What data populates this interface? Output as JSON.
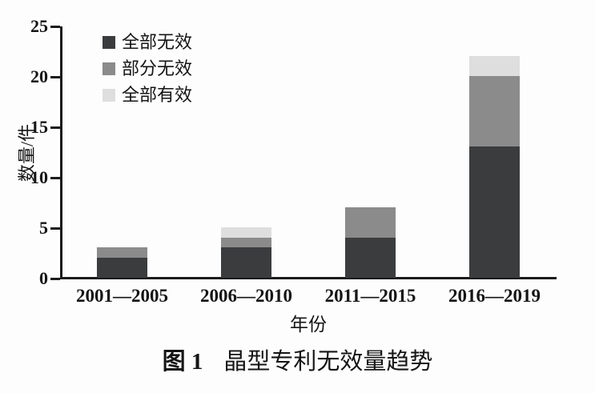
{
  "figure": {
    "caption_label": "图 1",
    "caption_title": "晶型专利无效量趋势"
  },
  "chart_data": {
    "type": "bar",
    "stacked": true,
    "title": "",
    "xlabel": "年份",
    "ylabel": "数量/件",
    "categories": [
      "2001—2005",
      "2006—2010",
      "2011—2015",
      "2016—2019"
    ],
    "series": [
      {
        "name": "全部无效",
        "color": "#3a3c3e",
        "values": [
          2,
          3,
          4,
          13
        ]
      },
      {
        "name": "部分无效",
        "color": "#8b8b8b",
        "values": [
          1,
          1,
          3,
          7
        ]
      },
      {
        "name": "全部有效",
        "color": "#dedede",
        "values": [
          0,
          1,
          0,
          2
        ]
      }
    ],
    "totals": [
      3,
      5,
      7,
      22
    ],
    "ylim": [
      0,
      25
    ],
    "yticks": [
      0,
      5,
      10,
      15,
      20,
      25
    ],
    "legend_position": "upper-left",
    "grid": false,
    "axis_color": "#1b1b1b"
  }
}
